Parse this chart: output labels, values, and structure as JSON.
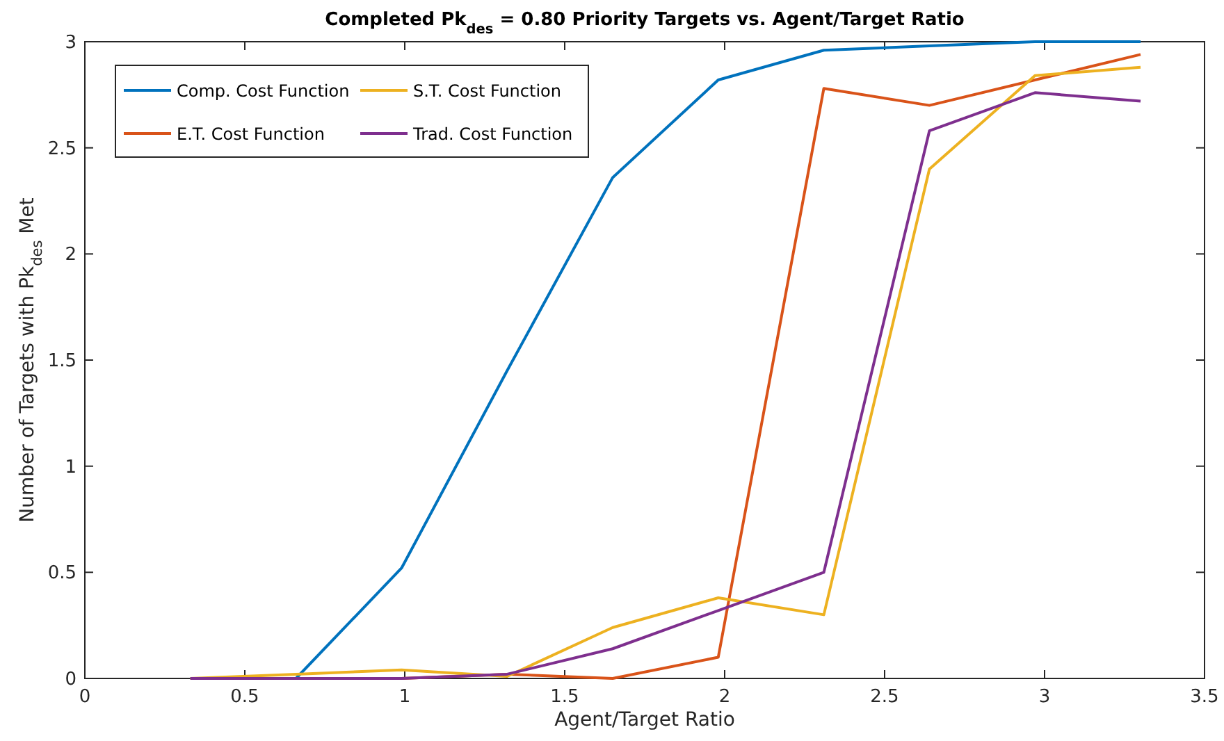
{
  "chart_data": {
    "type": "line",
    "title": "Completed Pk$_{des}$ = 0.80 Priority Targets vs. Agent/Target Ratio",
    "xlabel": "Agent/Target Ratio",
    "ylabel": "Number of Targets with Pk$_{des}$ Met",
    "x": [
      0.33,
      0.66,
      0.99,
      1.32,
      1.65,
      1.98,
      2.31,
      2.64,
      2.97,
      3.3
    ],
    "series": [
      {
        "name": "Comp. Cost Function",
        "color": "#0072bd",
        "values": [
          0,
          0,
          0.52,
          1.45,
          2.36,
          2.82,
          2.96,
          2.98,
          3.0,
          3.0
        ]
      },
      {
        "name": "E.T. Cost Function",
        "color": "#d95319",
        "values": [
          0,
          0,
          0,
          0.02,
          0,
          0.1,
          2.78,
          2.7,
          2.82,
          2.94
        ]
      },
      {
        "name": "S.T. Cost Function",
        "color": "#edb120",
        "values": [
          0,
          0.02,
          0.04,
          0.01,
          0.24,
          0.38,
          0.3,
          2.4,
          2.84,
          2.88
        ]
      },
      {
        "name": "Trad. Cost Function",
        "color": "#7e2f8e",
        "values": [
          0,
          0,
          0,
          0.02,
          0.14,
          0.32,
          0.5,
          2.58,
          2.76,
          2.72
        ]
      }
    ],
    "xlim": [
      0,
      3.5
    ],
    "xticks": [
      0,
      0.5,
      1,
      1.5,
      2,
      2.5,
      3,
      3.5
    ],
    "ylim": [
      0,
      3
    ],
    "yticks": [
      0,
      0.5,
      1,
      1.5,
      2,
      2.5,
      3
    ],
    "grid": false,
    "legend": "top left",
    "marker": "none",
    "line_style": "solid"
  }
}
